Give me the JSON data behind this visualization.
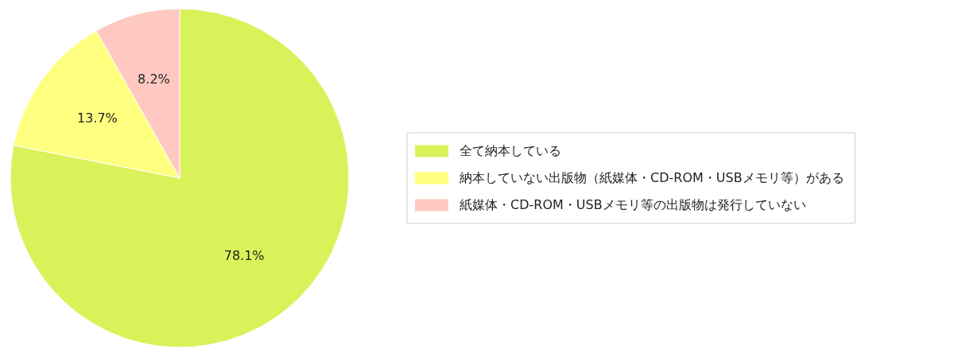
{
  "chart_data": {
    "type": "pie",
    "categories": [
      "全て納本している",
      "納本していない出版物（紙媒体・CD-ROM・USBメモリ等）がある",
      "紙媒体・CD-ROM・USBメモリ等の出版物は発行していない"
    ],
    "values": [
      78.1,
      13.7,
      8.2
    ],
    "value_labels": [
      "78.1%",
      "13.7%",
      "8.2%"
    ],
    "colors": [
      "#d9f25a",
      "#ffff80",
      "#ffc8c0"
    ],
    "legend": "right"
  }
}
